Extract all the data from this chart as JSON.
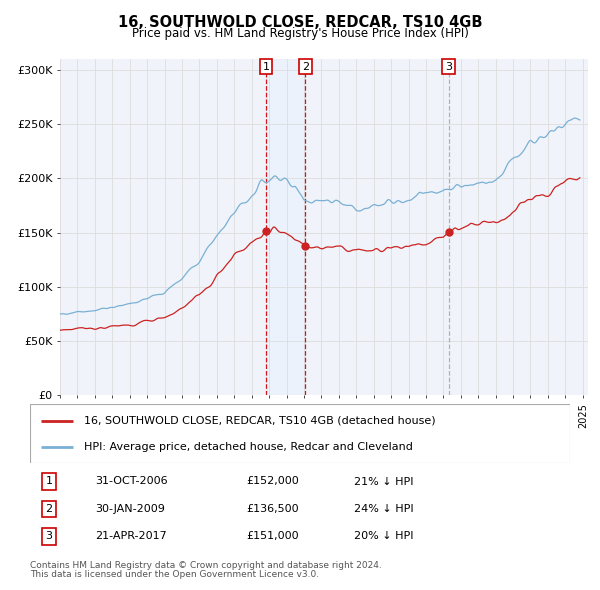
{
  "title": "16, SOUTHWOLD CLOSE, REDCAR, TS10 4GB",
  "subtitle": "Price paid vs. HM Land Registry's House Price Index (HPI)",
  "legend_line1": "16, SOUTHWOLD CLOSE, REDCAR, TS10 4GB (detached house)",
  "legend_line2": "HPI: Average price, detached house, Redcar and Cleveland",
  "transactions": [
    {
      "num": 1,
      "date": "31-OCT-2006",
      "price": "£152,000",
      "year": 2006.83,
      "pct": "21% ↓ HPI"
    },
    {
      "num": 2,
      "date": "30-JAN-2009",
      "price": "£136,500",
      "year": 2009.08,
      "pct": "24% ↓ HPI"
    },
    {
      "num": 3,
      "date": "21-APR-2017",
      "price": "£151,000",
      "year": 2017.31,
      "pct": "20% ↓ HPI"
    }
  ],
  "footnote1": "Contains HM Land Registry data © Crown copyright and database right 2024.",
  "footnote2": "This data is licensed under the Open Government Licence v3.0.",
  "ylim": [
    0,
    310000
  ],
  "yticks": [
    0,
    50000,
    100000,
    150000,
    200000,
    250000,
    300000
  ],
  "ytick_labels": [
    "£0",
    "£50K",
    "£100K",
    "£150K",
    "£200K",
    "£250K",
    "£300K"
  ],
  "hpi_color": "#7ab0d4",
  "price_color": "#cc2222",
  "vline_color_solid": "#cc0000",
  "vline_color_light": "#aaaaaa",
  "shade_color": "#ddeeff",
  "background_color": "#ffffff",
  "plot_bg": "#f0f4fa",
  "grid_color": "#dddddd"
}
